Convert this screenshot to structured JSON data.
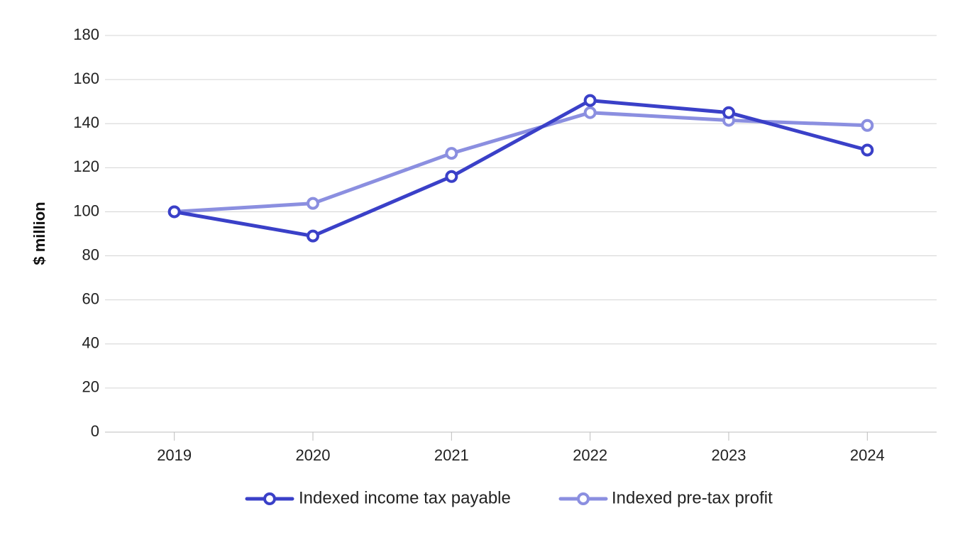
{
  "chart_data": {
    "type": "line",
    "title": "",
    "xlabel": "",
    "ylabel": "$ million",
    "categories": [
      "2019",
      "2020",
      "2021",
      "2022",
      "2023",
      "2024"
    ],
    "ylim": [
      0,
      180
    ],
    "yticks": [
      "0",
      "20",
      "40",
      "60",
      "80",
      "100",
      "120",
      "140",
      "160",
      "180"
    ],
    "grid": true,
    "legend_position": "bottom",
    "series": [
      {
        "name": "Indexed income tax payable",
        "color": "#3a40c8",
        "values": [
          100,
          89,
          116,
          150.5,
          145,
          128
        ]
      },
      {
        "name": "Indexed pre-tax profit",
        "color": "#8b8fe0",
        "values": [
          100,
          103.8,
          126.5,
          145,
          141.5,
          139.2
        ]
      }
    ]
  }
}
